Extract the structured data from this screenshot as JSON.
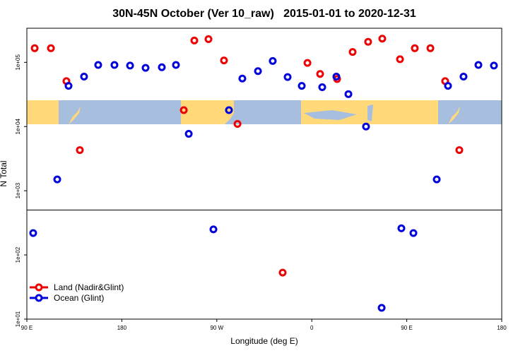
{
  "chart_data": {
    "type": "scatter",
    "title": "30N-45N October (Ver 10_raw)   2015-01-01 to 2020-12-31",
    "xlabel": "Longitude (deg E)",
    "ylabel": "N Total",
    "xlim": [
      90,
      540
    ],
    "ylim": [
      10,
      340000
    ],
    "log_y": true,
    "xticks": [
      {
        "value": 90,
        "label": "90 E"
      },
      {
        "value": 180,
        "label": "180"
      },
      {
        "value": 270,
        "label": "90 W"
      },
      {
        "value": 360,
        "label": "0"
      },
      {
        "value": 450,
        "label": "90 E"
      },
      {
        "value": 540,
        "label": "180"
      }
    ],
    "yticks": [
      {
        "value": 10,
        "label": "1e+01"
      },
      {
        "value": 100,
        "label": "1e+02"
      },
      {
        "value": 1000,
        "label": "1e+03"
      },
      {
        "value": 10000,
        "label": "1e+04"
      },
      {
        "value": 100000,
        "label": "1e+05"
      }
    ],
    "hline": 500,
    "legend": "bottom left",
    "series": [
      {
        "name": "Land (Nadir&Glint)",
        "color": "#ee0000",
        "x": [
          97.4,
          112.8,
          127.5,
          140.2,
          238.7,
          248.7,
          262.1,
          276.8,
          289.6,
          332.4,
          355.9,
          367.9,
          384,
          398.7,
          413.4,
          426.8,
          443.6,
          457.6,
          472.4,
          486.4,
          499.8
        ],
        "values": [
          166000,
          166000,
          51000,
          4300,
          18000,
          219000,
          230000,
          107000,
          11000,
          53,
          98000,
          66000,
          55000,
          145000,
          209000,
          234000,
          112000,
          166000,
          166000,
          51000,
          4300
        ]
      },
      {
        "name": "Ocean (Glint)",
        "color": "#0000dd",
        "x": [
          96,
          118.8,
          129.5,
          144.2,
          157.6,
          173,
          187.8,
          202.5,
          217.9,
          231.3,
          243.4,
          266.8,
          281.5,
          294.2,
          309,
          323,
          337.1,
          350.5,
          369.9,
          383.3,
          394.7,
          411.4,
          426.2,
          444.9,
          456.3,
          478.4,
          489.1,
          503.8,
          517.9,
          532.6
        ],
        "values": [
          219,
          1500,
          43000,
          60000,
          91000,
          91000,
          89000,
          82000,
          84000,
          91000,
          7700,
          250,
          18000,
          56000,
          73000,
          105000,
          59000,
          43000,
          41000,
          60000,
          32000,
          10000,
          15,
          260,
          219,
          1500,
          43000,
          60000,
          91000,
          89000
        ]
      }
    ]
  }
}
